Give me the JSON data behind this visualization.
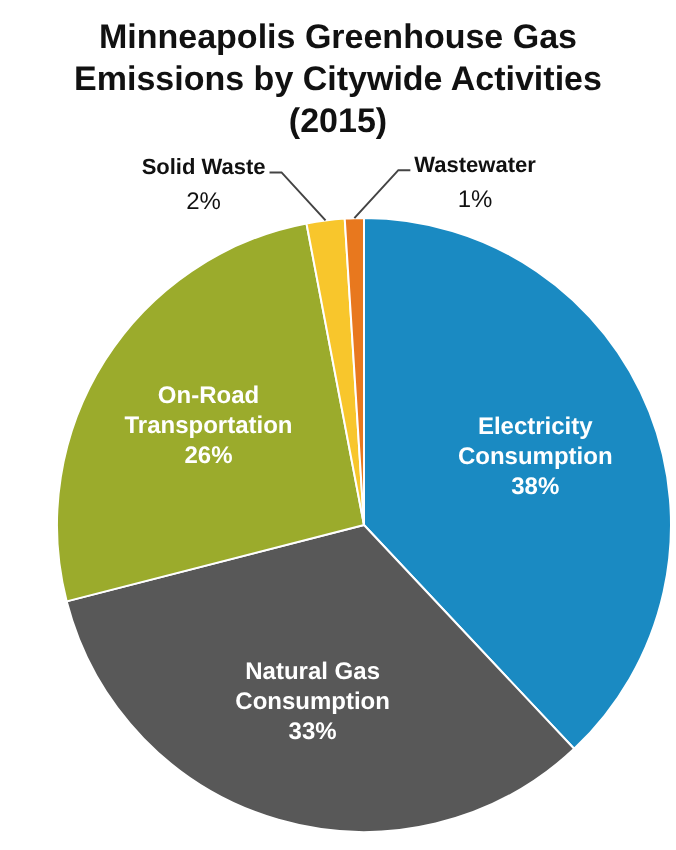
{
  "chart_data": {
    "type": "pie",
    "title": "Minneapolis Greenhouse Gas Emissions by Citywide Activities (2015)",
    "categories": [
      "Electricity Consumption",
      "Natural Gas Consumption",
      "On-Road Transportation",
      "Solid Waste",
      "Wastewater"
    ],
    "values": [
      38,
      33,
      26,
      2,
      1
    ],
    "colors": [
      "#1a8ac2",
      "#585858",
      "#9bab2c",
      "#f8c62c",
      "#e8781e"
    ],
    "value_labels": [
      "38%",
      "33%",
      "26%",
      "2%",
      "1%"
    ],
    "legend": false
  }
}
